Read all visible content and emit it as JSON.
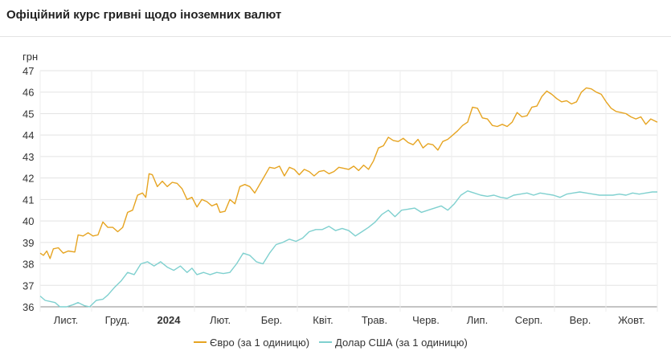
{
  "title": "Офіційний курс гривні щодо іноземних валют",
  "chart_data": {
    "type": "line",
    "title": "Офіційний курс гривні щодо іноземних валют",
    "ylabel": "грн",
    "ylim": [
      36,
      47
    ],
    "yticks": [
      36,
      37,
      38,
      39,
      40,
      41,
      42,
      43,
      44,
      45,
      46,
      47
    ],
    "x_tick_labels": [
      {
        "label": "Лист.",
        "bold": false
      },
      {
        "label": "Груд.",
        "bold": false
      },
      {
        "label": "2024",
        "bold": true
      },
      {
        "label": "Лют.",
        "bold": false
      },
      {
        "label": "Бер.",
        "bold": false
      },
      {
        "label": "Квіт.",
        "bold": false
      },
      {
        "label": "Трав.",
        "bold": false
      },
      {
        "label": "Черв.",
        "bold": false
      },
      {
        "label": "Лип.",
        "bold": false
      },
      {
        "label": "Серп.",
        "bold": false
      },
      {
        "label": "Вер.",
        "bold": false
      },
      {
        "label": "Жовт.",
        "bold": false
      }
    ],
    "x_start": "2023-10-23",
    "x_end": "2024-10-31",
    "grid": "horizontal",
    "legend_position": "bottom",
    "series": [
      {
        "name": "Євро (за 1 одиницю)",
        "color": "#e6a421",
        "points": [
          [
            "2023-10-23",
            38.5
          ],
          [
            "2023-10-25",
            38.4
          ],
          [
            "2023-10-27",
            38.6
          ],
          [
            "2023-10-29",
            38.25
          ],
          [
            "2023-10-31",
            38.7
          ],
          [
            "2023-11-03",
            38.75
          ],
          [
            "2023-11-06",
            38.5
          ],
          [
            "2023-11-09",
            38.6
          ],
          [
            "2023-11-13",
            38.55
          ],
          [
            "2023-11-15",
            39.35
          ],
          [
            "2023-11-18",
            39.3
          ],
          [
            "2023-11-21",
            39.45
          ],
          [
            "2023-11-24",
            39.3
          ],
          [
            "2023-11-27",
            39.35
          ],
          [
            "2023-11-30",
            39.95
          ],
          [
            "2023-12-03",
            39.7
          ],
          [
            "2023-12-06",
            39.7
          ],
          [
            "2023-12-09",
            39.5
          ],
          [
            "2023-12-12",
            39.7
          ],
          [
            "2023-12-15",
            40.4
          ],
          [
            "2023-12-18",
            40.5
          ],
          [
            "2023-12-21",
            41.2
          ],
          [
            "2023-12-24",
            41.3
          ],
          [
            "2023-12-26",
            41.1
          ],
          [
            "2023-12-28",
            42.2
          ],
          [
            "2023-12-30",
            42.15
          ],
          [
            "2024-01-02",
            41.6
          ],
          [
            "2024-01-05",
            41.85
          ],
          [
            "2024-01-08",
            41.6
          ],
          [
            "2024-01-11",
            41.8
          ],
          [
            "2024-01-14",
            41.75
          ],
          [
            "2024-01-17",
            41.5
          ],
          [
            "2024-01-20",
            41.0
          ],
          [
            "2024-01-23",
            41.1
          ],
          [
            "2024-01-26",
            40.65
          ],
          [
            "2024-01-29",
            41.0
          ],
          [
            "2024-02-01",
            40.9
          ],
          [
            "2024-02-04",
            40.7
          ],
          [
            "2024-02-07",
            40.8
          ],
          [
            "2024-02-09",
            40.4
          ],
          [
            "2024-02-12",
            40.45
          ],
          [
            "2024-02-15",
            41.0
          ],
          [
            "2024-02-18",
            40.8
          ],
          [
            "2024-02-21",
            41.6
          ],
          [
            "2024-02-24",
            41.7
          ],
          [
            "2024-02-27",
            41.6
          ],
          [
            "2024-03-01",
            41.3
          ],
          [
            "2024-03-04",
            41.7
          ],
          [
            "2024-03-07",
            42.1
          ],
          [
            "2024-03-10",
            42.5
          ],
          [
            "2024-03-13",
            42.45
          ],
          [
            "2024-03-16",
            42.55
          ],
          [
            "2024-03-19",
            42.1
          ],
          [
            "2024-03-22",
            42.5
          ],
          [
            "2024-03-25",
            42.4
          ],
          [
            "2024-03-28",
            42.15
          ],
          [
            "2024-03-31",
            42.4
          ],
          [
            "2024-04-03",
            42.3
          ],
          [
            "2024-04-06",
            42.1
          ],
          [
            "2024-04-09",
            42.3
          ],
          [
            "2024-04-12",
            42.35
          ],
          [
            "2024-04-15",
            42.2
          ],
          [
            "2024-04-18",
            42.3
          ],
          [
            "2024-04-21",
            42.5
          ],
          [
            "2024-04-24",
            42.45
          ],
          [
            "2024-04-27",
            42.4
          ],
          [
            "2024-04-30",
            42.55
          ],
          [
            "2024-05-03",
            42.35
          ],
          [
            "2024-05-06",
            42.6
          ],
          [
            "2024-05-09",
            42.4
          ],
          [
            "2024-05-12",
            42.8
          ],
          [
            "2024-05-15",
            43.4
          ],
          [
            "2024-05-18",
            43.5
          ],
          [
            "2024-05-21",
            43.9
          ],
          [
            "2024-05-24",
            43.75
          ],
          [
            "2024-05-27",
            43.7
          ],
          [
            "2024-05-30",
            43.85
          ],
          [
            "2024-06-02",
            43.65
          ],
          [
            "2024-06-05",
            43.55
          ],
          [
            "2024-06-08",
            43.8
          ],
          [
            "2024-06-11",
            43.4
          ],
          [
            "2024-06-14",
            43.6
          ],
          [
            "2024-06-17",
            43.55
          ],
          [
            "2024-06-20",
            43.3
          ],
          [
            "2024-06-23",
            43.7
          ],
          [
            "2024-06-26",
            43.8
          ],
          [
            "2024-06-29",
            44.0
          ],
          [
            "2024-07-02",
            44.2
          ],
          [
            "2024-07-05",
            44.45
          ],
          [
            "2024-07-08",
            44.6
          ],
          [
            "2024-07-11",
            45.3
          ],
          [
            "2024-07-14",
            45.25
          ],
          [
            "2024-07-17",
            44.8
          ],
          [
            "2024-07-20",
            44.75
          ],
          [
            "2024-07-23",
            44.45
          ],
          [
            "2024-07-26",
            44.4
          ],
          [
            "2024-07-29",
            44.5
          ],
          [
            "2024-08-01",
            44.4
          ],
          [
            "2024-08-04",
            44.6
          ],
          [
            "2024-08-07",
            45.05
          ],
          [
            "2024-08-10",
            44.85
          ],
          [
            "2024-08-13",
            44.9
          ],
          [
            "2024-08-16",
            45.3
          ],
          [
            "2024-08-19",
            45.35
          ],
          [
            "2024-08-22",
            45.8
          ],
          [
            "2024-08-25",
            46.05
          ],
          [
            "2024-08-28",
            45.9
          ],
          [
            "2024-08-31",
            45.7
          ],
          [
            "2024-09-03",
            45.55
          ],
          [
            "2024-09-06",
            45.6
          ],
          [
            "2024-09-09",
            45.45
          ],
          [
            "2024-09-12",
            45.55
          ],
          [
            "2024-09-15",
            46.0
          ],
          [
            "2024-09-18",
            46.2
          ],
          [
            "2024-09-21",
            46.15
          ],
          [
            "2024-09-24",
            46.0
          ],
          [
            "2024-09-27",
            45.9
          ],
          [
            "2024-09-30",
            45.55
          ],
          [
            "2024-10-03",
            45.25
          ],
          [
            "2024-10-06",
            45.1
          ],
          [
            "2024-10-09",
            45.05
          ],
          [
            "2024-10-12",
            45.0
          ],
          [
            "2024-10-15",
            44.85
          ],
          [
            "2024-10-18",
            44.75
          ],
          [
            "2024-10-21",
            44.85
          ],
          [
            "2024-10-24",
            44.5
          ],
          [
            "2024-10-27",
            44.75
          ],
          [
            "2024-10-31",
            44.6
          ]
        ]
      },
      {
        "name": "Долар США (за 1 одиницю)",
        "color": "#7fd0cf",
        "points": [
          [
            "2023-10-23",
            36.5
          ],
          [
            "2023-10-26",
            36.3
          ],
          [
            "2023-10-29",
            36.25
          ],
          [
            "2023-11-01",
            36.2
          ],
          [
            "2023-11-04",
            36.0
          ],
          [
            "2023-11-08",
            36.0
          ],
          [
            "2023-11-12",
            36.1
          ],
          [
            "2023-11-15",
            36.2
          ],
          [
            "2023-11-19",
            36.05
          ],
          [
            "2023-11-22",
            36.0
          ],
          [
            "2023-11-26",
            36.3
          ],
          [
            "2023-11-30",
            36.35
          ],
          [
            "2023-12-03",
            36.55
          ],
          [
            "2023-12-07",
            36.9
          ],
          [
            "2023-12-11",
            37.2
          ],
          [
            "2023-12-15",
            37.6
          ],
          [
            "2023-12-19",
            37.5
          ],
          [
            "2023-12-23",
            38.0
          ],
          [
            "2023-12-27",
            38.1
          ],
          [
            "2023-12-31",
            37.9
          ],
          [
            "2024-01-04",
            38.1
          ],
          [
            "2024-01-08",
            37.85
          ],
          [
            "2024-01-12",
            37.7
          ],
          [
            "2024-01-16",
            37.9
          ],
          [
            "2024-01-20",
            37.6
          ],
          [
            "2024-01-23",
            37.8
          ],
          [
            "2024-01-26",
            37.5
          ],
          [
            "2024-01-30",
            37.6
          ],
          [
            "2024-02-03",
            37.5
          ],
          [
            "2024-02-07",
            37.6
          ],
          [
            "2024-02-11",
            37.55
          ],
          [
            "2024-02-15",
            37.6
          ],
          [
            "2024-02-19",
            38.0
          ],
          [
            "2024-02-23",
            38.5
          ],
          [
            "2024-02-27",
            38.4
          ],
          [
            "2024-03-02",
            38.1
          ],
          [
            "2024-03-06",
            38.0
          ],
          [
            "2024-03-10",
            38.5
          ],
          [
            "2024-03-14",
            38.9
          ],
          [
            "2024-03-18",
            39.0
          ],
          [
            "2024-03-22",
            39.15
          ],
          [
            "2024-03-26",
            39.05
          ],
          [
            "2024-03-30",
            39.2
          ],
          [
            "2024-04-03",
            39.5
          ],
          [
            "2024-04-07",
            39.6
          ],
          [
            "2024-04-11",
            39.6
          ],
          [
            "2024-04-15",
            39.75
          ],
          [
            "2024-04-19",
            39.55
          ],
          [
            "2024-04-23",
            39.65
          ],
          [
            "2024-04-27",
            39.55
          ],
          [
            "2024-05-01",
            39.3
          ],
          [
            "2024-05-05",
            39.5
          ],
          [
            "2024-05-09",
            39.7
          ],
          [
            "2024-05-13",
            39.95
          ],
          [
            "2024-05-17",
            40.3
          ],
          [
            "2024-05-21",
            40.5
          ],
          [
            "2024-05-25",
            40.2
          ],
          [
            "2024-05-29",
            40.5
          ],
          [
            "2024-06-02",
            40.55
          ],
          [
            "2024-06-06",
            40.6
          ],
          [
            "2024-06-10",
            40.4
          ],
          [
            "2024-06-14",
            40.5
          ],
          [
            "2024-06-18",
            40.6
          ],
          [
            "2024-06-22",
            40.7
          ],
          [
            "2024-06-26",
            40.5
          ],
          [
            "2024-06-30",
            40.8
          ],
          [
            "2024-07-04",
            41.2
          ],
          [
            "2024-07-08",
            41.4
          ],
          [
            "2024-07-12",
            41.3
          ],
          [
            "2024-07-16",
            41.2
          ],
          [
            "2024-07-20",
            41.15
          ],
          [
            "2024-07-24",
            41.2
          ],
          [
            "2024-07-28",
            41.1
          ],
          [
            "2024-08-01",
            41.05
          ],
          [
            "2024-08-05",
            41.2
          ],
          [
            "2024-08-09",
            41.25
          ],
          [
            "2024-08-13",
            41.3
          ],
          [
            "2024-08-17",
            41.2
          ],
          [
            "2024-08-21",
            41.3
          ],
          [
            "2024-08-25",
            41.25
          ],
          [
            "2024-08-29",
            41.2
          ],
          [
            "2024-09-02",
            41.1
          ],
          [
            "2024-09-06",
            41.25
          ],
          [
            "2024-09-10",
            41.3
          ],
          [
            "2024-09-14",
            41.35
          ],
          [
            "2024-09-18",
            41.3
          ],
          [
            "2024-09-22",
            41.25
          ],
          [
            "2024-09-26",
            41.2
          ],
          [
            "2024-09-30",
            41.2
          ],
          [
            "2024-10-04",
            41.2
          ],
          [
            "2024-10-08",
            41.25
          ],
          [
            "2024-10-12",
            41.2
          ],
          [
            "2024-10-16",
            41.3
          ],
          [
            "2024-10-20",
            41.25
          ],
          [
            "2024-10-24",
            41.3
          ],
          [
            "2024-10-28",
            41.35
          ],
          [
            "2024-10-31",
            41.35
          ]
        ]
      }
    ]
  }
}
